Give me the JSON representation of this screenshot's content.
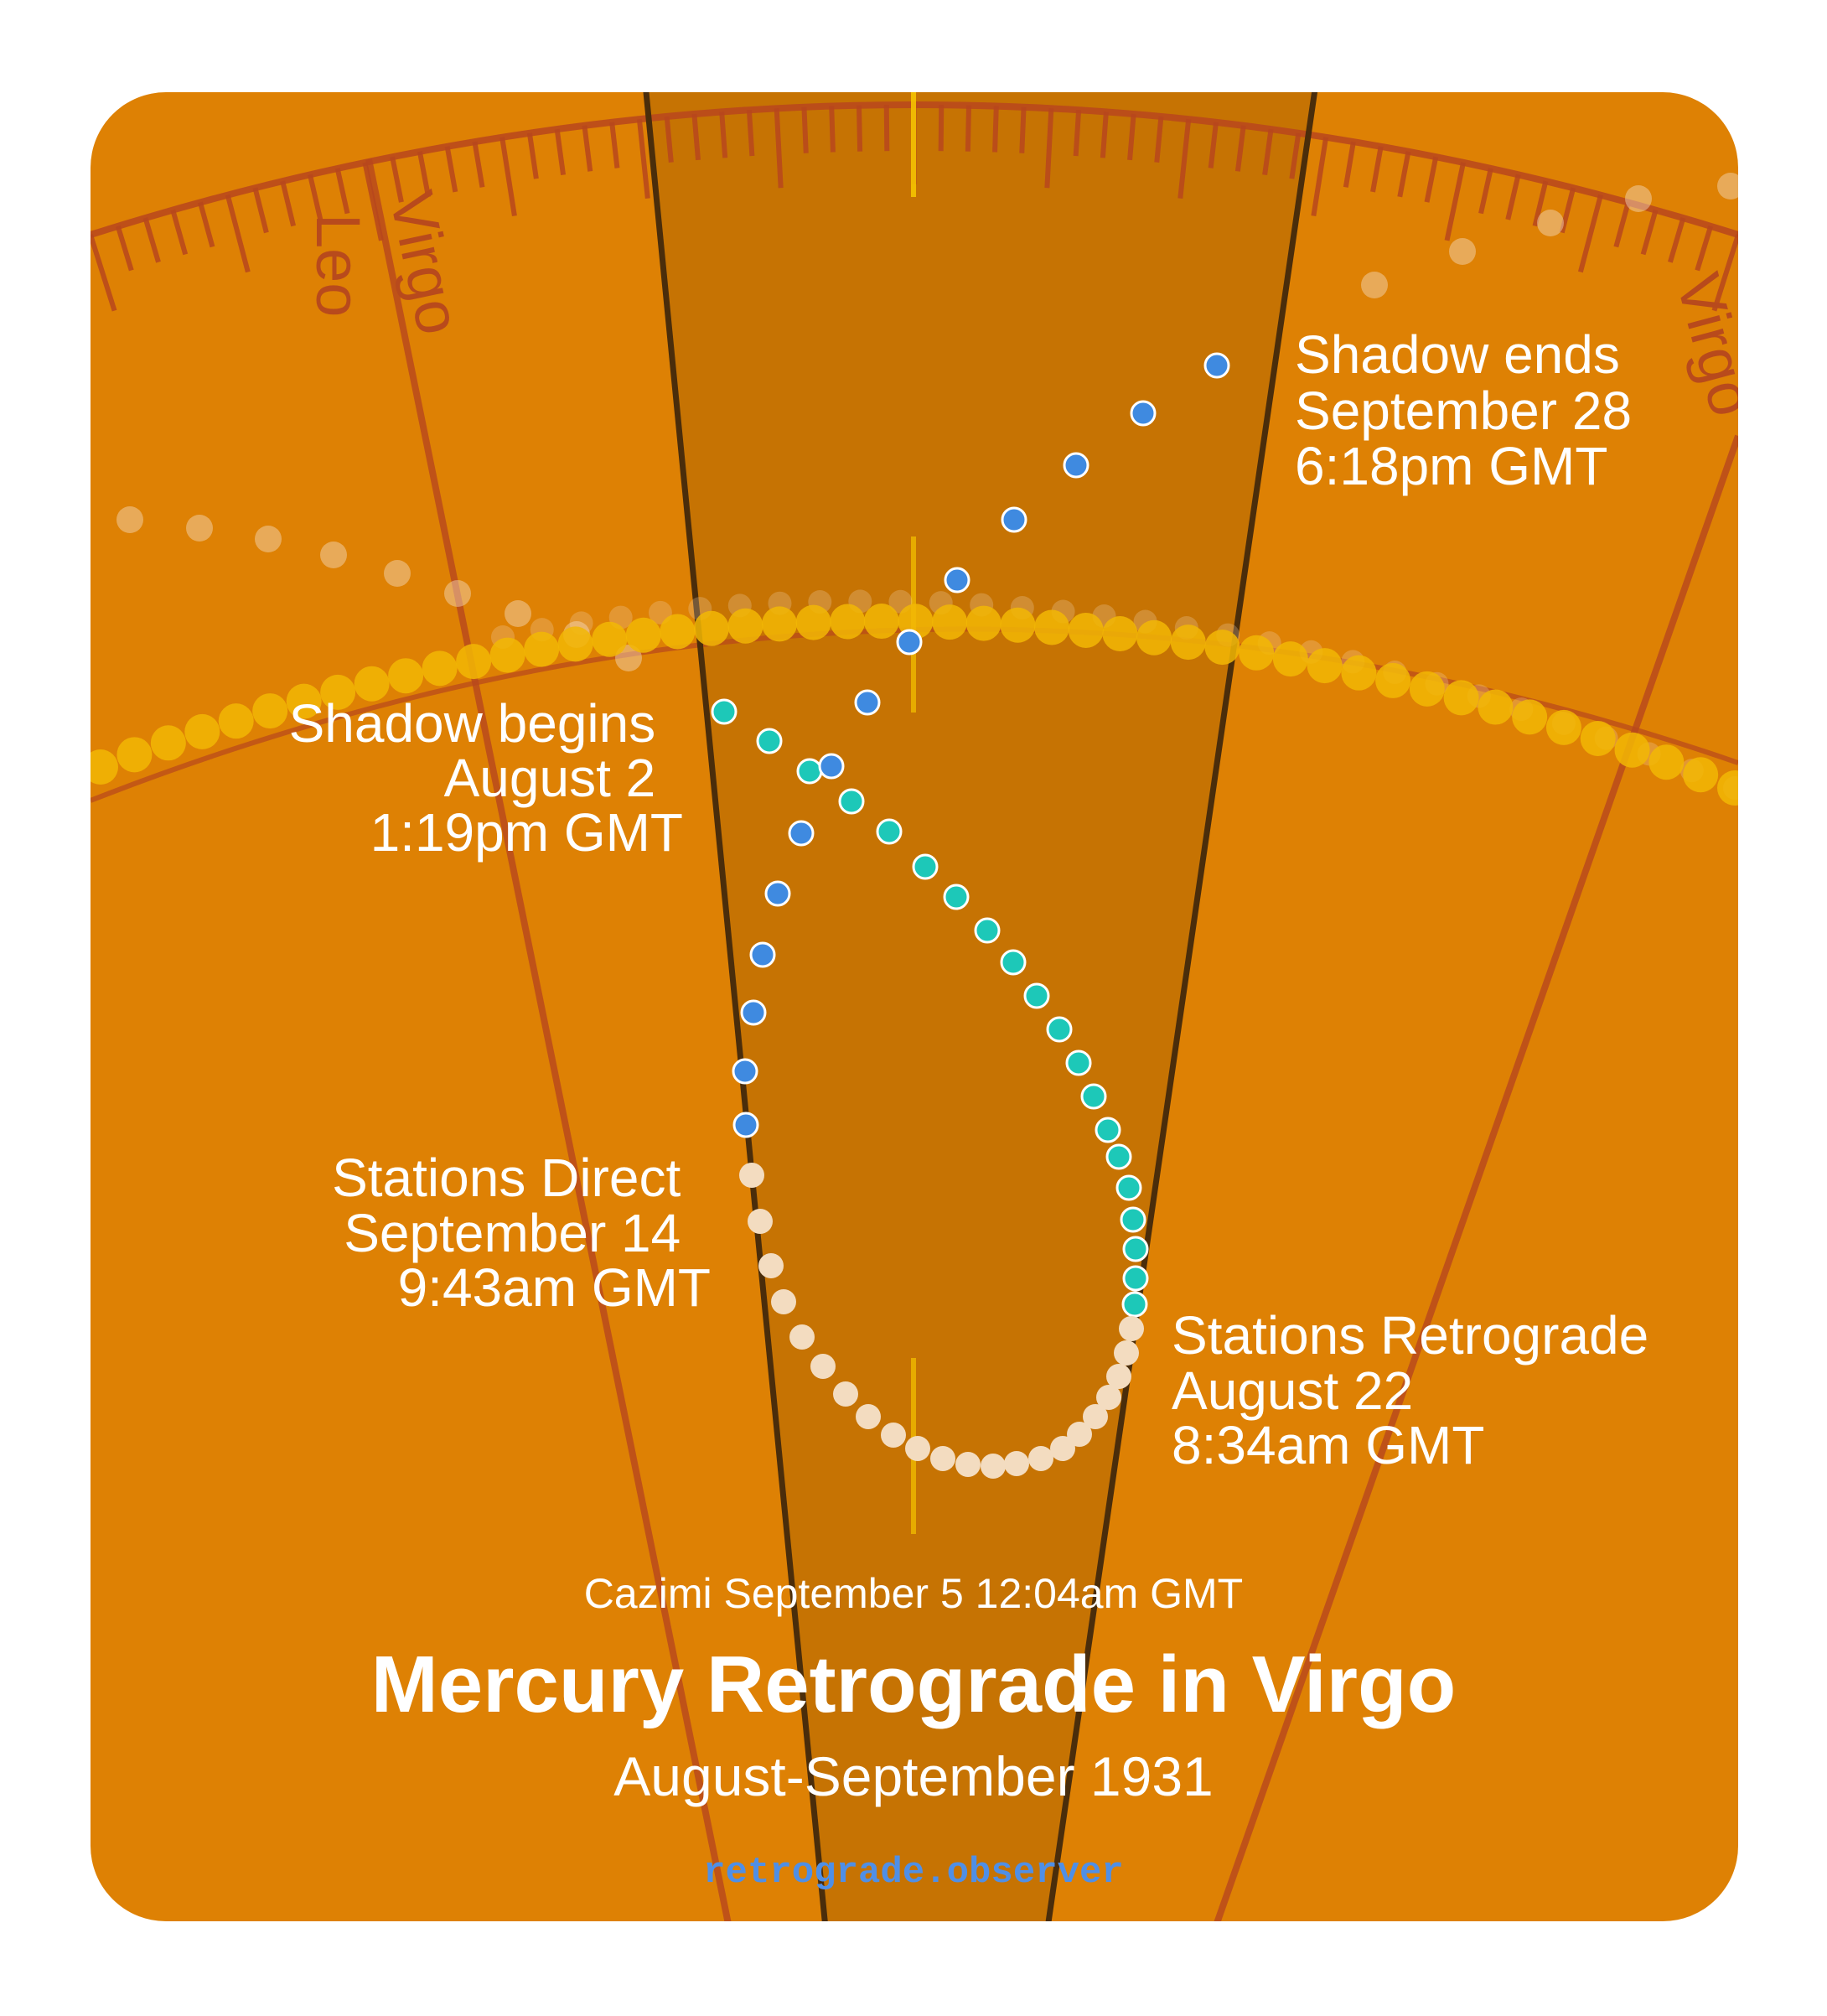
{
  "title": "Mercury Retrograde in Virgo",
  "subtitle": "August-September 1931",
  "cazimi": "Cazimi September 5 12:04am GMT",
  "site": "retrograde.observer",
  "signs": {
    "left_outer": "Leo",
    "left_inner": "Virgo",
    "right": "Virgo"
  },
  "events": {
    "shadow_begins": {
      "lines": [
        "Shadow begins",
        "August 2",
        "1:19pm GMT"
      ]
    },
    "shadow_ends": {
      "lines": [
        "Shadow ends",
        "September 28",
        "6:18pm GMT"
      ]
    },
    "stations_direct": {
      "lines": [
        "Stations Direct",
        "September 14",
        "9:43am GMT"
      ]
    },
    "stations_retrograde": {
      "lines": [
        "Stations Retrograde",
        "August 22",
        "8:34am GMT"
      ]
    }
  },
  "colors": {
    "background": "#de8104",
    "retrograde_band": "#c67303",
    "boundary_line": "#4a2d0b",
    "zodiac_ring": "#b8471d",
    "sun_path": "#f2b705",
    "pre_shadow_dot": "#1dc8b8",
    "retrograde_dot": "#f3dcc0",
    "post_shadow_dot": "#3f8ae0",
    "site_text": "#4f8fe6"
  }
}
